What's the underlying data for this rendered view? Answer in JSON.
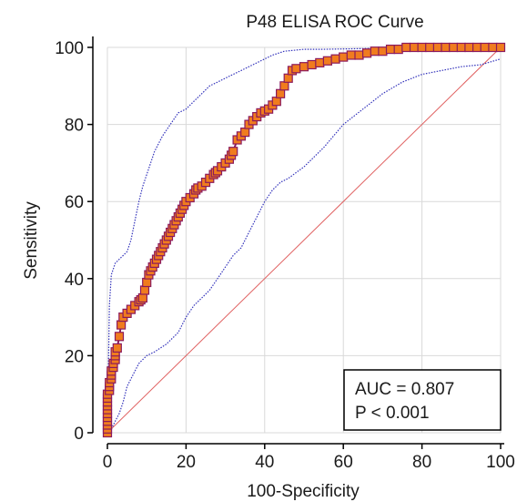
{
  "chart_data": {
    "type": "line",
    "title": "P48 ELISA ROC Curve",
    "xlabel": "100-Specificity",
    "ylabel": "Sensitivity",
    "xlim": [
      0,
      100
    ],
    "ylim": [
      0,
      100
    ],
    "xticks": [
      0,
      20,
      40,
      60,
      80,
      100
    ],
    "yticks": [
      0,
      20,
      40,
      60,
      80,
      100
    ],
    "grid": true,
    "annotation": {
      "auc_text": "AUC = 0.807",
      "p_text": "P < 0.001",
      "placement": "bottom-right"
    },
    "colors": {
      "roc_marker_fill": "#f07c1e",
      "roc_marker_edge": "#8b1a5c",
      "ci_line": "#3333bb",
      "reference_line": "#e06060"
    },
    "series": [
      {
        "role": "roc_curve",
        "x": [
          0,
          0,
          0,
          0,
          0,
          0,
          0,
          0,
          0,
          0,
          0,
          0.5,
          0.5,
          0.5,
          1,
          1,
          1,
          1.5,
          1.5,
          2,
          2,
          2,
          2.5,
          3,
          3.5,
          4,
          5,
          6,
          7,
          8,
          8.5,
          9,
          9.5,
          10,
          10.5,
          11,
          11.5,
          12,
          12.5,
          13,
          13.5,
          14,
          14.5,
          15,
          15.5,
          16,
          16.5,
          17,
          17.5,
          18,
          18.5,
          19,
          19.5,
          20,
          21,
          22,
          22.5,
          23,
          24,
          25,
          26,
          27,
          27.5,
          28,
          29,
          30,
          31,
          31.5,
          32,
          33,
          34,
          35,
          36,
          37,
          38,
          39,
          40,
          41,
          42,
          43,
          44,
          45,
          46,
          47,
          48,
          50,
          52,
          54,
          56,
          58,
          60,
          62,
          64,
          66,
          68,
          70,
          72,
          74,
          76,
          78,
          80,
          82,
          84,
          86,
          88,
          90,
          92,
          94,
          96,
          98,
          100
        ],
        "y": [
          0,
          1,
          2,
          3,
          4,
          5,
          6,
          7,
          8,
          9,
          10,
          11,
          12,
          13,
          14,
          15,
          16,
          17,
          18,
          19,
          20,
          21,
          22,
          25,
          28,
          30,
          31,
          32,
          33,
          34,
          34.5,
          35,
          37,
          39,
          41,
          42,
          43,
          44,
          45,
          46,
          47,
          48,
          49,
          50,
          51,
          52,
          53,
          54,
          55,
          56,
          57,
          58,
          59,
          60,
          61,
          62,
          63,
          63.5,
          64,
          65,
          66,
          67,
          67.5,
          68,
          69,
          70,
          71,
          72,
          73,
          76,
          77,
          78,
          80,
          81,
          82,
          83,
          83.5,
          84,
          85,
          86,
          88,
          90,
          92,
          94,
          94.5,
          95,
          95.5,
          96,
          96.5,
          97,
          97.5,
          98,
          98,
          98.5,
          99,
          99,
          99.5,
          99.5,
          100,
          100,
          100,
          100,
          100,
          100,
          100,
          100,
          100,
          100,
          100,
          100,
          100
        ]
      },
      {
        "role": "ci_upper",
        "x": [
          0,
          0.5,
          1,
          2,
          3,
          4,
          5,
          6,
          7,
          8,
          9,
          10,
          12,
          14,
          16,
          18,
          20,
          22,
          24,
          26,
          28,
          30,
          32,
          34,
          36,
          38,
          40,
          42,
          45,
          50,
          55,
          60,
          65,
          70,
          75,
          80,
          85,
          90,
          95,
          100
        ],
        "y": [
          0,
          33,
          41,
          44,
          45,
          46,
          47,
          50,
          55,
          60,
          64,
          67,
          73,
          77,
          80,
          83,
          84,
          86,
          88,
          90,
          91,
          92,
          93,
          94,
          95,
          96,
          97,
          98,
          99,
          99.5,
          99.5,
          99.6,
          99.7,
          99.8,
          99.9,
          100,
          100,
          100,
          100,
          100
        ]
      },
      {
        "role": "ci_lower",
        "x": [
          0,
          1,
          2,
          3,
          4,
          5,
          6,
          7,
          8,
          9,
          10,
          12,
          15,
          18,
          20,
          22,
          24,
          26,
          28,
          30,
          32,
          34,
          36,
          38,
          40,
          42,
          44,
          46,
          50,
          55,
          60,
          65,
          70,
          75,
          80,
          85,
          90,
          95,
          100
        ],
        "y": [
          0,
          1,
          3,
          5,
          8,
          12,
          14,
          16,
          18,
          19,
          20,
          21,
          23,
          26,
          30,
          33,
          35,
          37,
          40,
          43,
          46,
          48,
          52,
          56,
          60,
          63,
          65,
          66,
          69,
          74,
          80,
          84,
          88,
          91,
          93,
          94,
          95,
          95.5,
          97
        ]
      },
      {
        "role": "reference_line",
        "x": [
          0,
          100
        ],
        "y": [
          0,
          100
        ]
      }
    ]
  }
}
